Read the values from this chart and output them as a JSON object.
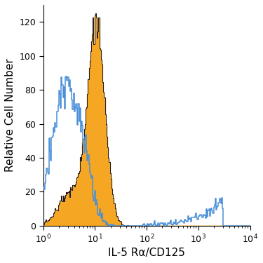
{
  "title": "",
  "xlabel": "IL-5 Rα/CD125",
  "ylabel": "Relative Cell Number",
  "xlim": [
    1.0,
    10000.0
  ],
  "ylim": [
    0,
    130
  ],
  "yticks": [
    0,
    20,
    40,
    60,
    80,
    100,
    120
  ],
  "filled_color": "#F5A623",
  "filled_edge_color": "#1a1a2e",
  "open_color": "#4a90d9",
  "background_color": "#ffffff",
  "xlabel_fontsize": 11,
  "ylabel_fontsize": 11,
  "tick_labelsize": 9,
  "filled_peak": 125.0,
  "filled_peak_x": 10.0,
  "filled_sigma": 0.38,
  "open_flat_level": 72.0,
  "open_peak": 88.0,
  "open_peak_x": 5.0
}
